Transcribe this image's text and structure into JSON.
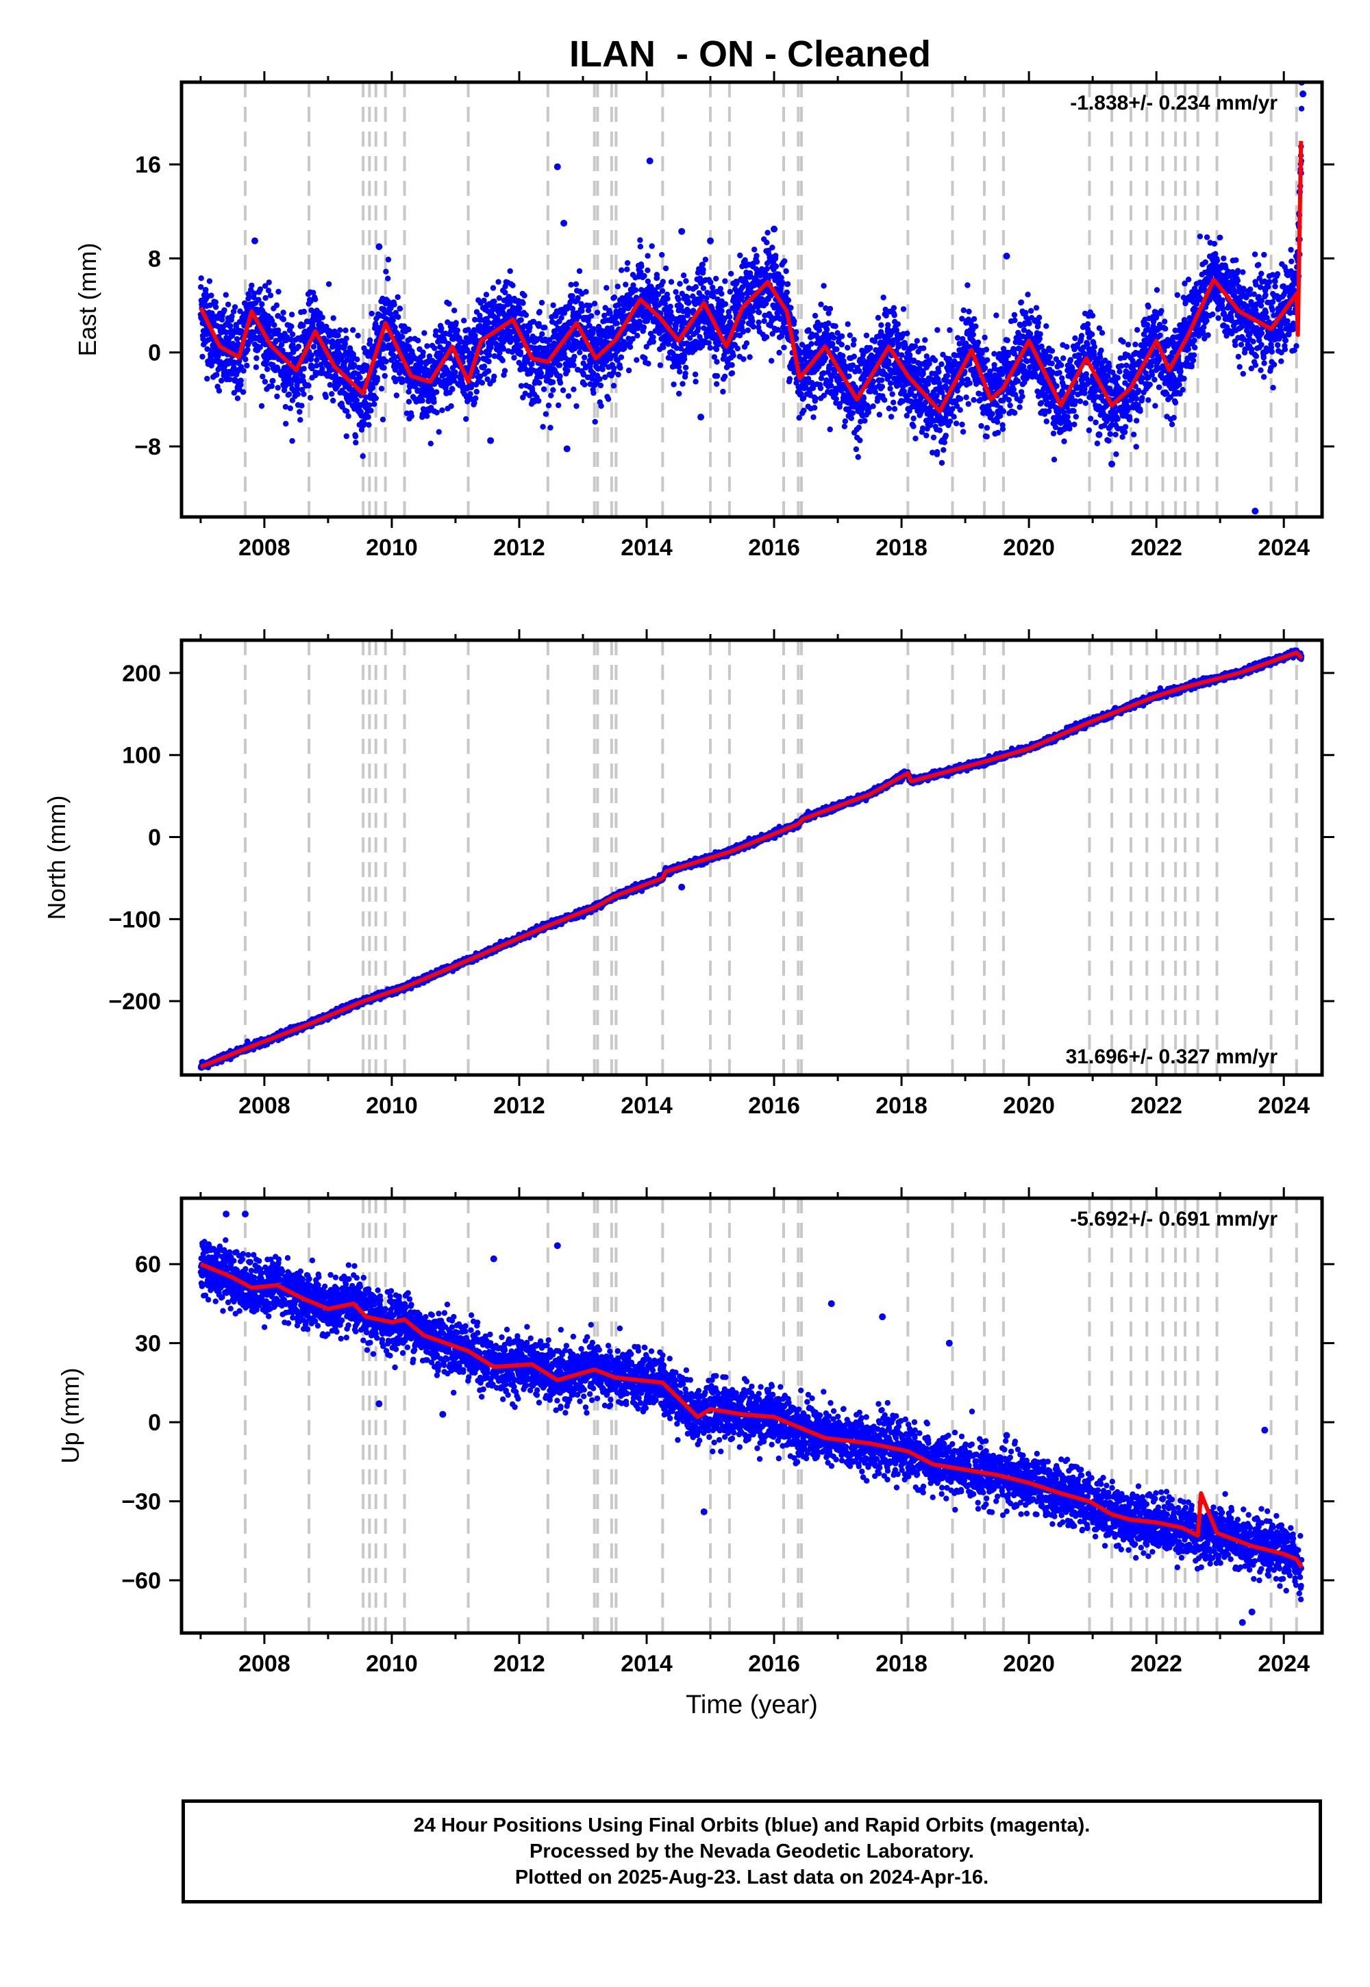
{
  "title": "ILAN  - ON - Cleaned",
  "footer": {
    "lines": [
      "24 Hour Positions Using Final Orbits (blue) and Rapid Orbits (magenta).",
      "Processed by the Nevada Geodetic Laboratory.",
      "Plotted on 2025-Aug-23. Last data on 2024-Apr-16."
    ]
  },
  "colors": {
    "points": "#0000ff",
    "model": "#ff0000",
    "events": "#c8c8c8"
  },
  "event_lines": [
    2007.7,
    2008.7,
    2009.55,
    2009.65,
    2009.75,
    2009.9,
    2010.2,
    2011.2,
    2012.45,
    2013.18,
    2013.23,
    2013.45,
    2013.52,
    2014.25,
    2015.0,
    2015.3,
    2016.15,
    2016.38,
    2016.43,
    2018.1,
    2018.8,
    2019.3,
    2019.6,
    2020.95,
    2021.3,
    2021.6,
    2021.85,
    2022.1,
    2022.3,
    2022.45,
    2022.65,
    2022.95,
    2023.8,
    2024.2
  ],
  "chart_data": [
    {
      "type": "scatter",
      "panel": "east",
      "ylabel": "East (mm)",
      "xlabel": "",
      "rate_label": "-1.838+/- 0.234 mm/yr",
      "xlim": [
        2006.7,
        2024.6
      ],
      "ylim": [
        -14,
        23
      ],
      "x_ticks": [
        2008,
        2010,
        2012,
        2014,
        2016,
        2018,
        2020,
        2022,
        2024
      ],
      "x_tick_labels": [
        "2008",
        "2010",
        "2012",
        "2014",
        "2016",
        "2018",
        "2020",
        "2022",
        "2024"
      ],
      "y_ticks": [
        16,
        8,
        0,
        -8
      ],
      "y_tick_labels": [
        "16",
        "8",
        "0",
        "−8"
      ],
      "model": {
        "x": [
          2007.0,
          2007.3,
          2007.6,
          2007.8,
          2008.1,
          2008.5,
          2008.8,
          2009.1,
          2009.55,
          2009.9,
          2010.3,
          2010.6,
          2010.95,
          2011.2,
          2011.4,
          2011.9,
          2012.2,
          2012.45,
          2012.9,
          2013.2,
          2013.5,
          2013.9,
          2014.2,
          2014.5,
          2014.9,
          2015.25,
          2015.5,
          2015.9,
          2016.2,
          2016.4,
          2016.8,
          2017.3,
          2017.8,
          2018.1,
          2018.6,
          2019.1,
          2019.4,
          2019.6,
          2020.0,
          2020.5,
          2020.9,
          2021.3,
          2021.6,
          2022.0,
          2022.2,
          2022.5,
          2022.9,
          2023.3,
          2023.8,
          2024.2,
          2024.22,
          2024.27
        ],
        "y": [
          3.8,
          0.5,
          -0.4,
          3.5,
          0.6,
          -1.5,
          1.8,
          -1.2,
          -3.5,
          2.5,
          -2.0,
          -2.5,
          0.5,
          -2.5,
          1.0,
          2.8,
          -0.5,
          -0.8,
          2.5,
          -0.5,
          1.0,
          4.5,
          3.0,
          1.0,
          4.2,
          0.5,
          3.8,
          6.0,
          3.5,
          -2.2,
          0.5,
          -4.0,
          0.5,
          -2.0,
          -5.0,
          0.2,
          -4.0,
          -3.0,
          1.0,
          -4.5,
          -0.5,
          -4.5,
          -3.0,
          1.0,
          -1.5,
          1.5,
          6.2,
          3.5,
          2.0,
          5.0,
          1.5,
          18.0
        ]
      },
      "data": {
        "x": [
          2007.0,
          2007.3,
          2007.6,
          2007.8,
          2008.1,
          2008.5,
          2008.8,
          2009.1,
          2009.55,
          2009.9,
          2010.3,
          2010.6,
          2010.95,
          2011.2,
          2011.4,
          2011.9,
          2012.2,
          2012.45,
          2012.9,
          2013.2,
          2013.5,
          2013.9,
          2014.2,
          2014.5,
          2014.9,
          2015.25,
          2015.5,
          2015.9,
          2016.2,
          2016.4,
          2016.8,
          2017.3,
          2017.8,
          2018.1,
          2018.6,
          2019.1,
          2019.4,
          2019.6,
          2020.0,
          2020.5,
          2020.9,
          2021.3,
          2021.6,
          2022.0,
          2022.2,
          2022.5,
          2022.9,
          2023.3,
          2023.8,
          2024.2,
          2024.28
        ],
        "y": [
          3.8,
          0.5,
          -0.4,
          3.5,
          0.6,
          -1.5,
          1.8,
          -1.2,
          -3.5,
          2.5,
          -2.0,
          -2.5,
          0.5,
          -2.5,
          1.0,
          2.8,
          -0.5,
          -0.8,
          2.5,
          -0.5,
          1.0,
          4.5,
          3.0,
          1.0,
          4.2,
          0.5,
          3.8,
          6.0,
          3.5,
          -2.2,
          0.5,
          -4.0,
          0.5,
          -2.0,
          -5.0,
          0.2,
          -4.0,
          -3.0,
          1.0,
          -4.5,
          -0.5,
          -4.5,
          -3.0,
          1.0,
          -1.5,
          1.5,
          6.2,
          3.5,
          2.0,
          5.0,
          18.0
        ],
        "spread_mm": 2.5
      },
      "outliers": {
        "x": [
          2012.6,
          2012.7,
          2014.05,
          2014.55,
          2016.0,
          2007.85,
          2009.8,
          2011.55,
          2012.75,
          2019.65,
          2021.1,
          2021.3,
          2023.55,
          2024.28,
          2024.3,
          2015.0,
          2014.85
        ],
        "y": [
          15.8,
          11.0,
          16.3,
          10.3,
          10.5,
          9.5,
          9.0,
          -7.5,
          -8.2,
          8.2,
          -7.0,
          -9.5,
          -13.5,
          23.0,
          22.0,
          9.5,
          -5.5
        ]
      }
    },
    {
      "type": "scatter",
      "panel": "north",
      "ylabel": "North (mm)",
      "xlabel": "",
      "rate_label": "31.696+/- 0.327 mm/yr",
      "xlim": [
        2006.7,
        2024.6
      ],
      "ylim": [
        -290,
        240
      ],
      "x_ticks": [
        2008,
        2010,
        2012,
        2014,
        2016,
        2018,
        2020,
        2022,
        2024
      ],
      "x_tick_labels": [
        "2008",
        "2010",
        "2012",
        "2014",
        "2016",
        "2018",
        "2020",
        "2022",
        "2024"
      ],
      "y_ticks": [
        200,
        100,
        0,
        -100,
        -200
      ],
      "y_tick_labels": [
        "200",
        "100",
        "0",
        "−100",
        "−200"
      ],
      "model": {
        "x": [
          2007.0,
          2007.7,
          2008.7,
          2009.55,
          2010.2,
          2011.2,
          2012.45,
          2013.2,
          2013.5,
          2014.25,
          2014.3,
          2015.3,
          2016.38,
          2016.45,
          2017.5,
          2018.1,
          2018.15,
          2019.3,
          2020.0,
          2020.95,
          2022.0,
          2022.45,
          2023.3,
          2024.2,
          2024.28
        ],
        "y": [
          -280,
          -258,
          -228,
          -200,
          -183,
          -150,
          -108,
          -85,
          -72,
          -50,
          -42,
          -18,
          16,
          22,
          52,
          78,
          68,
          92,
          108,
          140,
          172,
          183,
          200,
          225,
          218
        ]
      },
      "data": {
        "x": [
          2007.0,
          2007.7,
          2008.7,
          2009.55,
          2010.2,
          2011.2,
          2012.45,
          2013.2,
          2013.5,
          2014.25,
          2014.3,
          2015.3,
          2016.38,
          2016.45,
          2017.5,
          2018.1,
          2018.15,
          2019.3,
          2020.0,
          2020.95,
          2022.0,
          2022.45,
          2023.3,
          2024.2,
          2024.28
        ],
        "y": [
          -280,
          -258,
          -228,
          -200,
          -183,
          -150,
          -108,
          -85,
          -72,
          -50,
          -42,
          -18,
          16,
          22,
          52,
          78,
          68,
          92,
          108,
          140,
          172,
          183,
          200,
          225,
          218
        ],
        "spread_mm": 2.5
      },
      "outliers": {
        "x": [
          2014.55
        ],
        "y": [
          -61
        ]
      }
    },
    {
      "type": "scatter",
      "panel": "up",
      "ylabel": "Up (mm)",
      "xlabel": "Time (year)",
      "rate_label": "-5.692+/- 0.691 mm/yr",
      "xlim": [
        2006.7,
        2024.6
      ],
      "ylim": [
        -80,
        85
      ],
      "x_ticks": [
        2008,
        2010,
        2012,
        2014,
        2016,
        2018,
        2020,
        2022,
        2024
      ],
      "x_tick_labels": [
        "2008",
        "2010",
        "2012",
        "2014",
        "2016",
        "2018",
        "2020",
        "2022",
        "2024"
      ],
      "y_ticks": [
        60,
        30,
        0,
        -30,
        -60
      ],
      "y_tick_labels": [
        "60",
        "30",
        "0",
        "−30",
        "−60"
      ],
      "model": {
        "x": [
          2007.0,
          2007.5,
          2007.8,
          2008.2,
          2008.6,
          2009.0,
          2009.4,
          2009.6,
          2010.0,
          2010.2,
          2010.5,
          2011.2,
          2011.6,
          2012.2,
          2012.6,
          2013.18,
          2013.5,
          2014.25,
          2014.8,
          2015.0,
          2015.5,
          2016.0,
          2016.4,
          2016.8,
          2017.5,
          2018.1,
          2018.5,
          2019.0,
          2019.5,
          2020.0,
          2020.5,
          2020.95,
          2021.3,
          2021.6,
          2022.0,
          2022.4,
          2022.65,
          2022.7,
          2022.95,
          2023.5,
          2024.0,
          2024.2,
          2024.28
        ],
        "y": [
          60,
          55,
          51,
          52,
          47,
          43,
          45,
          40,
          38,
          39,
          33,
          27,
          21,
          22,
          16,
          20,
          17,
          15,
          2,
          5,
          3,
          2,
          -2,
          -6,
          -8,
          -11,
          -16,
          -18,
          -20,
          -23,
          -27,
          -30,
          -35,
          -37,
          -38,
          -40,
          -43,
          -27,
          -42,
          -47,
          -50,
          -52,
          -55
        ]
      },
      "data": {
        "x": [
          2007.0,
          2007.5,
          2007.8,
          2008.2,
          2008.6,
          2009.0,
          2009.4,
          2009.6,
          2010.0,
          2010.2,
          2010.5,
          2011.2,
          2011.6,
          2012.2,
          2012.6,
          2013.18,
          2013.5,
          2014.25,
          2014.8,
          2015.0,
          2015.5,
          2016.0,
          2016.4,
          2016.8,
          2017.5,
          2018.1,
          2018.5,
          2019.0,
          2019.5,
          2020.0,
          2020.5,
          2020.95,
          2021.3,
          2021.6,
          2022.0,
          2022.4,
          2022.65,
          2022.95,
          2023.5,
          2024.0,
          2024.2,
          2024.28
        ],
        "y": [
          60,
          55,
          51,
          52,
          47,
          43,
          45,
          40,
          38,
          39,
          33,
          27,
          21,
          22,
          16,
          20,
          17,
          15,
          2,
          5,
          3,
          2,
          -2,
          -6,
          -8,
          -11,
          -16,
          -18,
          -20,
          -23,
          -27,
          -30,
          -35,
          -37,
          -38,
          -40,
          -43,
          -42,
          -47,
          -50,
          -52,
          -55
        ],
        "spread_mm": 7
      },
      "outliers": {
        "x": [
          2007.4,
          2007.7,
          2012.6,
          2011.6,
          2016.9,
          2017.7,
          2018.75,
          2019.65,
          2014.9,
          2023.7,
          2023.35,
          2023.5,
          2009.8,
          2010.8
        ],
        "y": [
          79,
          79,
          67,
          62,
          45,
          40,
          30,
          -5,
          -34,
          -3,
          -76,
          -72,
          7,
          3
        ]
      }
    }
  ]
}
